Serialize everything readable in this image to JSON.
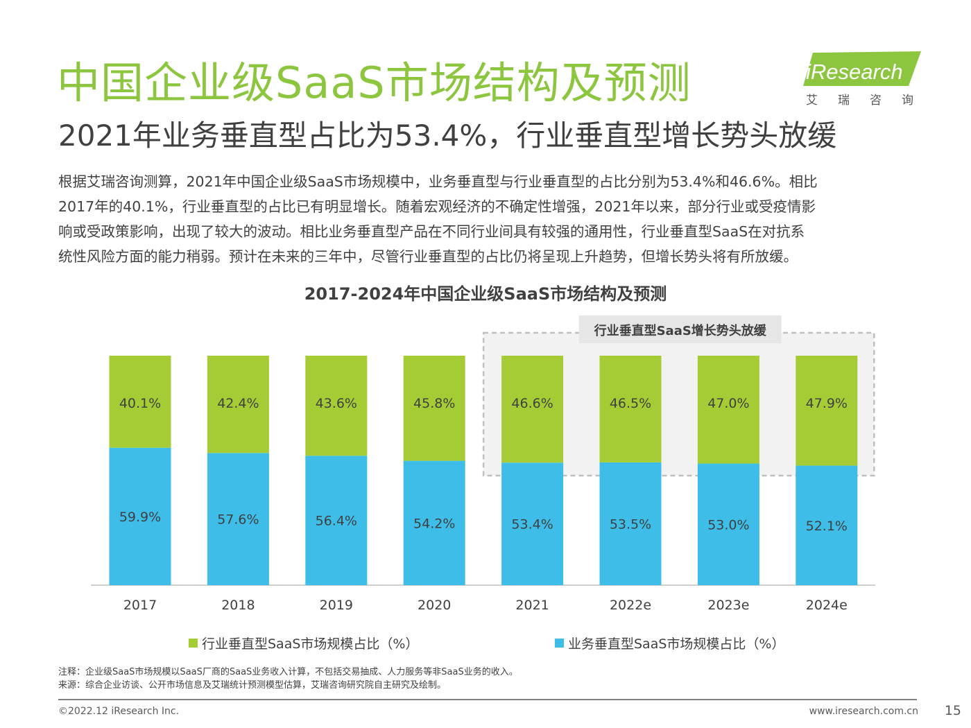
{
  "header": {
    "title": "中国企业级SaaS市场结构及预测",
    "subtitle": "2021年业务垂直型占比为53.4%，行业垂直型增长势头放缓"
  },
  "logo": {
    "brand": "iResearch",
    "chinese": "艾瑞咨询",
    "accent_color": "#8cc63f"
  },
  "body": {
    "lines": [
      "根据艾瑞咨询测算，2021年中国企业级SaaS市场规模中，业务垂直型与行业垂直型的占比分别为53.4%和46.6%。相比",
      "2017年的40.1%，行业垂直型的占比已有明显增长。随着宏观经济的不确定性增强，2021年以来，部分行业或受疫情影",
      "响或受政策影响，出现了较大的波动。相比业务垂直型产品在不同行业间具有较强的通用性，行业垂直型SaaS在对抗系",
      "统性风险方面的能力稍弱。预计在未来的三年中，尽管行业垂直型的占比仍将呈现上升趋势，但增长势头将有所放缓。"
    ]
  },
  "chart_data": {
    "type": "bar",
    "stacked": true,
    "title": "2017-2024年中国企业级SaaS市场结构及预测",
    "categories": [
      "2017",
      "2018",
      "2019",
      "2020",
      "2021",
      "2022e",
      "2023e",
      "2024e"
    ],
    "series": [
      {
        "name": "业务垂直型SaaS市场规模占比（%）",
        "color": "#3dbde8",
        "values": [
          59.9,
          57.6,
          56.4,
          54.2,
          53.4,
          53.5,
          53.0,
          52.1
        ],
        "labels": [
          "59.9%",
          "57.6%",
          "56.4%",
          "54.2%",
          "53.4%",
          "53.5%",
          "53.0%",
          "52.1%"
        ]
      },
      {
        "name": "行业垂直型SaaS市场规模占比（%）",
        "color": "#a5cc35",
        "values": [
          40.1,
          42.4,
          43.6,
          45.8,
          46.6,
          46.5,
          47.0,
          47.9
        ],
        "labels": [
          "40.1%",
          "42.4%",
          "43.6%",
          "45.8%",
          "46.6%",
          "46.5%",
          "47.0%",
          "47.9%"
        ]
      }
    ],
    "ylim": [
      0,
      100
    ],
    "annotation": {
      "text": "行业垂直型SaaS增长势头放缓",
      "span": [
        "2021",
        "2024e"
      ]
    },
    "legend_position": "bottom"
  },
  "notes": {
    "note": "注释：企业级SaaS市场规模以SaaS厂商的SaaS业务收入计算，不包括交易抽成、人力服务等非SaaS业务的收入。",
    "source": "来源：综合企业访谈、公开市场信息及艾瑞统计预测模型估算，艾瑞咨询研究院自主研究及绘制。"
  },
  "footer": {
    "copyright": "©2022.12 iResearch Inc.",
    "website": "www.iresearch.com.cn",
    "page_number": "15"
  }
}
